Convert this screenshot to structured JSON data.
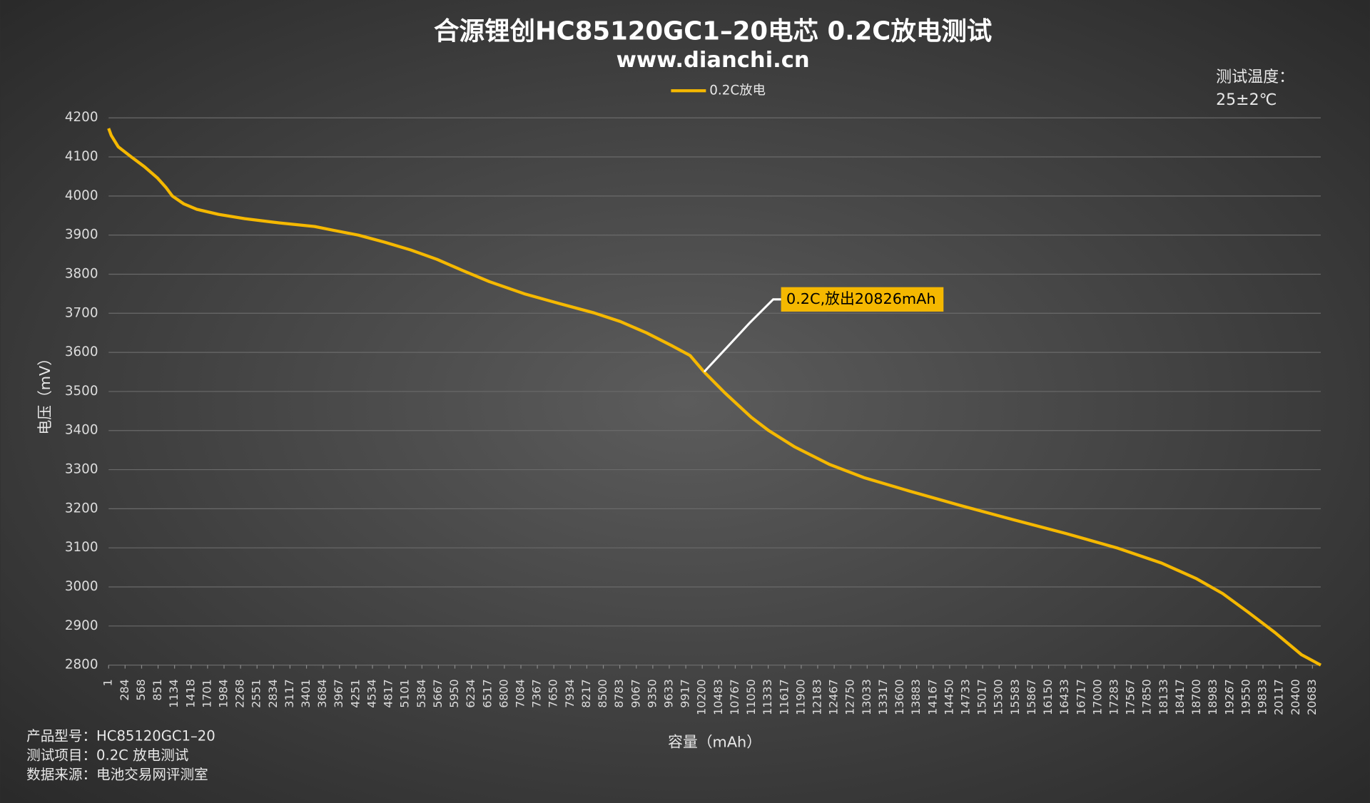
{
  "chart_data": {
    "type": "line",
    "title": "合源锂创HC85120GC1–20电芯 0.2C放电测试",
    "subtitle": "www.dianchi.cn",
    "temperature": [
      "测试温度：",
      "25±2℃"
    ],
    "ylabel": "电压（mV）",
    "xlabel": "容量（mAh）",
    "notes": [
      "产品型号：HC85120GC1–20",
      "测试项目：0.2C 放电测试",
      "数据来源：电池交易网评测室"
    ],
    "annotation": "0.2C,放出20826mAh",
    "x": [
      1,
      46,
      166,
      391,
      616,
      841,
      991,
      1096,
      1291,
      1516,
      1891,
      2341,
      2941,
      3541,
      3841,
      4291,
      4741,
      5191,
      5641,
      6091,
      6541,
      7141,
      7741,
      8341,
      8791,
      9241,
      9691,
      9991,
      10231,
      10591,
      11041,
      11341,
      11791,
      12391,
      12991,
      13741,
      14641,
      15541,
      16441,
      17341,
      18091,
      18691,
      19141,
      19591,
      20041,
      20491,
      20826
    ],
    "series": [
      {
        "name": "0.2C放电",
        "color": "#f5b800",
        "values": [
          4173,
          4155,
          4126,
          4100,
          4075,
          4046,
          4021,
          4000,
          3980,
          3966,
          3953,
          3942,
          3931,
          3922,
          3913,
          3900,
          3882,
          3862,
          3838,
          3809,
          3781,
          3750,
          3725,
          3701,
          3679,
          3650,
          3616,
          3592,
          3550,
          3496,
          3434,
          3400,
          3358,
          3313,
          3279,
          3246,
          3208,
          3172,
          3137,
          3099,
          3061,
          3021,
          2983,
          2934,
          2883,
          2827,
          2800
        ]
      }
    ],
    "xlim": [
      1,
      20826
    ],
    "xticks": [
      1,
      284,
      568,
      851,
      1134,
      1418,
      1701,
      1984,
      2268,
      2551,
      2834,
      3117,
      3401,
      3684,
      3967,
      4251,
      4534,
      4817,
      5101,
      5384,
      5667,
      5950,
      6234,
      6517,
      6800,
      7084,
      7367,
      7650,
      7934,
      8217,
      8500,
      8783,
      9067,
      9350,
      9633,
      9917,
      10200,
      10483,
      10767,
      11050,
      11333,
      11617,
      11900,
      12183,
      12467,
      12750,
      13033,
      13317,
      13600,
      13883,
      14167,
      14450,
      14733,
      15017,
      15300,
      15583,
      15867,
      16150,
      16433,
      16717,
      17000,
      17283,
      17567,
      17850,
      18133,
      18417,
      18700,
      18983,
      19267,
      19550,
      19833,
      20117,
      20400,
      20683
    ],
    "ylim": [
      2800,
      4200
    ],
    "yticks": [
      2800,
      2900,
      3000,
      3100,
      3200,
      3300,
      3400,
      3500,
      3600,
      3700,
      3800,
      3900,
      4000,
      4100,
      4200
    ],
    "grid": true,
    "legend": "top"
  }
}
